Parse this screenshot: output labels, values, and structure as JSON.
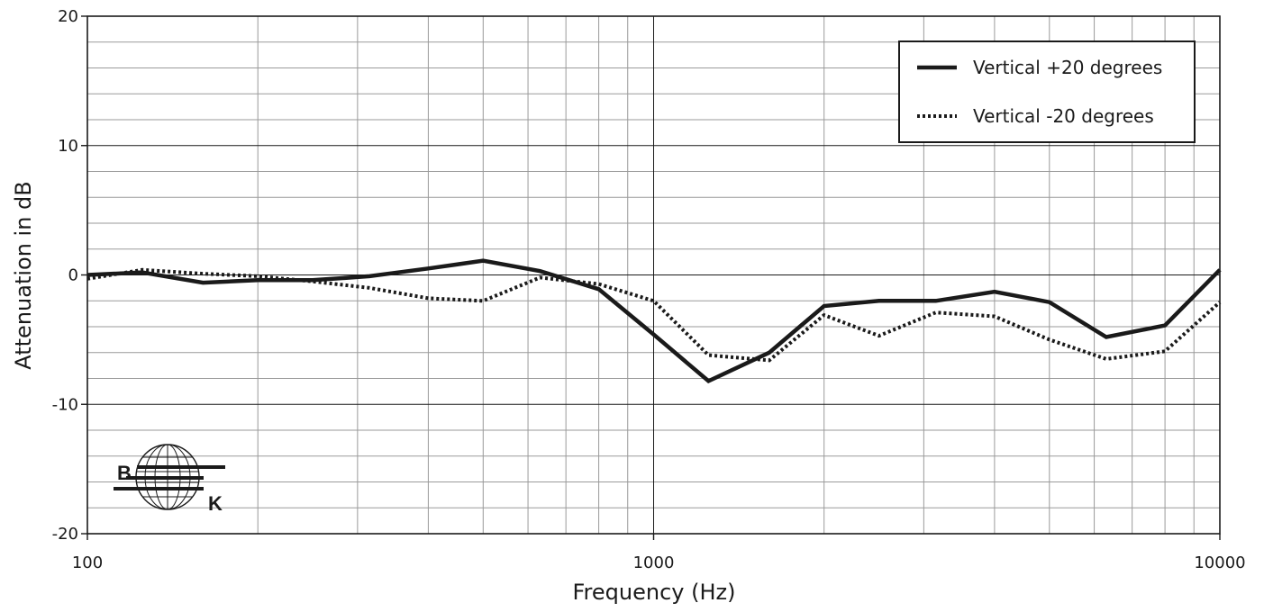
{
  "chart_data": {
    "type": "line",
    "title": "",
    "xlabel": "Frequency (Hz)",
    "ylabel": "Attenuation in dB",
    "xscale": "log",
    "xlim": [
      100,
      10000
    ],
    "ylim": [
      -20,
      20
    ],
    "x_ticks": [
      100,
      1000,
      10000
    ],
    "x_tick_labels": [
      "100",
      "1000",
      "10000"
    ],
    "y_ticks": [
      20,
      10,
      0,
      -10,
      -20
    ],
    "y_tick_labels": [
      "20",
      "10",
      "0",
      "-10",
      "-20"
    ],
    "grid": true,
    "legend_position": "top-right",
    "series": [
      {
        "name": "Vertical +20 degrees",
        "style": "solid",
        "color": "#1a1a1a",
        "x": [
          100,
          125,
          160,
          200,
          250,
          315,
          400,
          500,
          630,
          800,
          1000,
          1250,
          1600,
          2000,
          2500,
          3150,
          4000,
          5000,
          6300,
          8000,
          10000
        ],
        "values": [
          0.0,
          0.2,
          -0.6,
          -0.4,
          -0.4,
          -0.1,
          0.5,
          1.1,
          0.3,
          -1.1,
          -4.6,
          -8.2,
          -6.0,
          -2.4,
          -2.0,
          -2.0,
          -1.3,
          -2.1,
          -4.8,
          -3.9,
          0.4
        ]
      },
      {
        "name": "Vertical -20 degrees",
        "style": "dotted",
        "color": "#1a1a1a",
        "x": [
          100,
          125,
          160,
          200,
          250,
          315,
          400,
          500,
          630,
          800,
          1000,
          1250,
          1600,
          2000,
          2500,
          3150,
          4000,
          5000,
          6300,
          8000,
          10000
        ],
        "values": [
          -0.3,
          0.4,
          0.1,
          -0.1,
          -0.5,
          -1.0,
          -1.8,
          -2.0,
          -0.2,
          -0.7,
          -2.0,
          -6.2,
          -6.6,
          -3.1,
          -4.7,
          -2.9,
          -3.2,
          -5.0,
          -6.5,
          -5.9,
          -2.1
        ]
      }
    ],
    "logo": "BK"
  }
}
